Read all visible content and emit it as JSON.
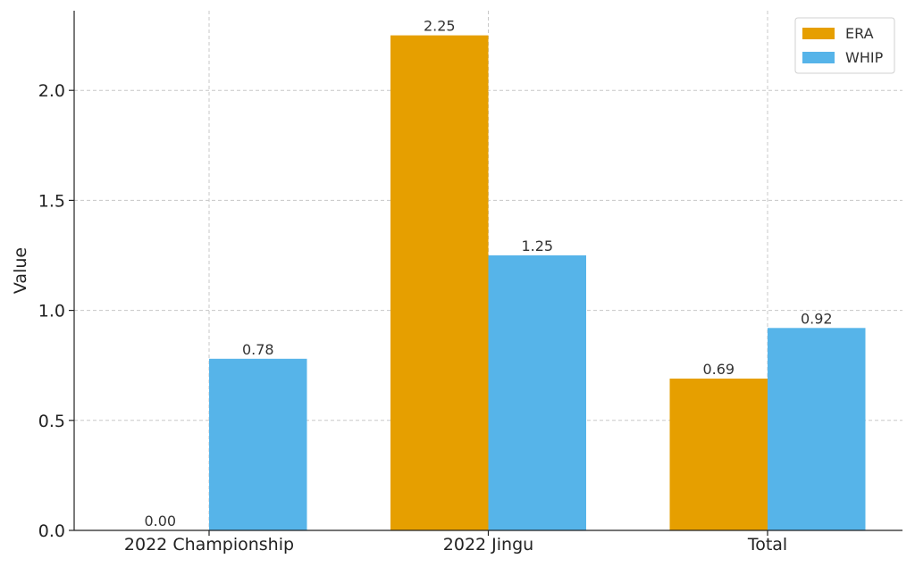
{
  "chart_data": {
    "type": "bar",
    "categories": [
      "2022 Championship",
      "2022 Jingu",
      "Total"
    ],
    "series": [
      {
        "name": "ERA",
        "values": [
          0.0,
          2.25,
          0.69
        ],
        "labels": [
          "0.00",
          "2.25",
          "0.69"
        ],
        "color": "#E69F00"
      },
      {
        "name": "WHIP",
        "values": [
          0.78,
          1.25,
          0.92
        ],
        "labels": [
          "0.78",
          "1.25",
          "0.92"
        ],
        "color": "#56B4E9"
      }
    ],
    "title": "",
    "xlabel": "",
    "ylabel": "Value",
    "ylim": [
      0,
      2.362
    ],
    "yticks": [
      0.0,
      0.5,
      1.0,
      1.5,
      2.0
    ],
    "ytick_labels": [
      "0.0",
      "0.5",
      "1.0",
      "1.5",
      "2.0"
    ],
    "grid": true,
    "legend_position": "top-right"
  }
}
